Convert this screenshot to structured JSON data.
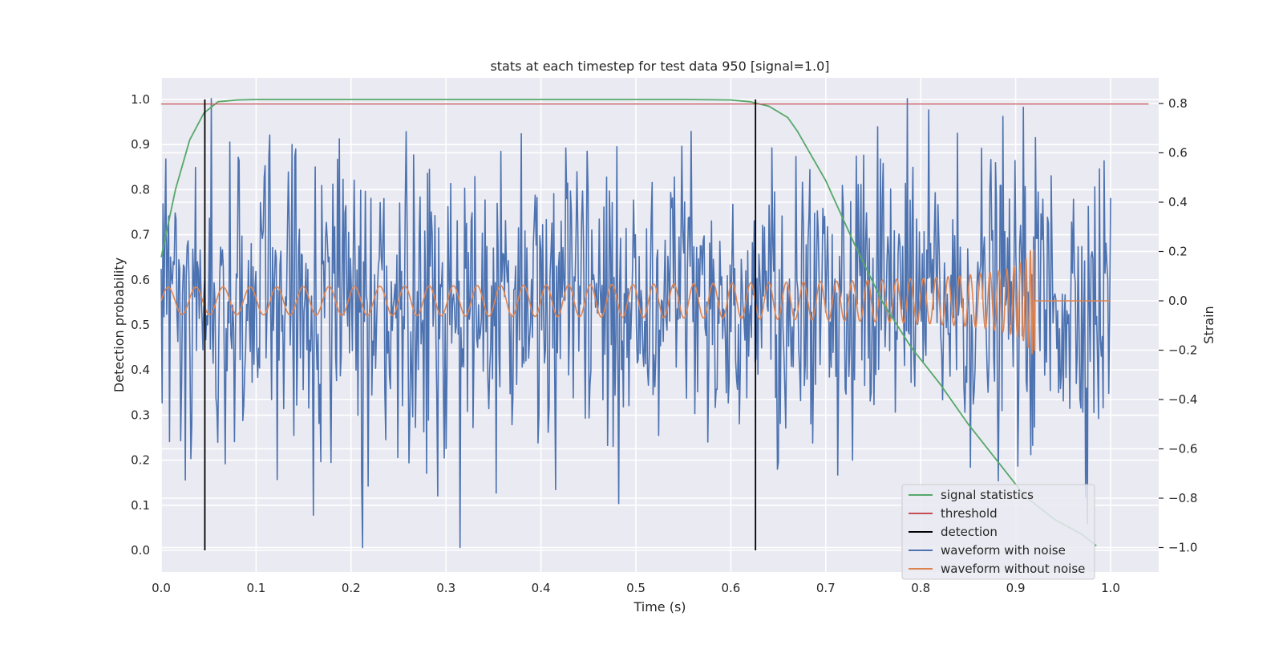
{
  "chart_data": {
    "type": "line",
    "title": "stats at each timestep for test data 950 [signal=1.0]",
    "xlabel": "Time (s)",
    "ylabel_left": "Detection probability",
    "ylabel_right": "Strain",
    "xlim": [
      0.0,
      1.05
    ],
    "ylim_left": [
      -0.05,
      1.05
    ],
    "ylim_right": [
      -1.09,
      0.9
    ],
    "x_ticks": [
      0.0,
      0.1,
      0.2,
      0.3,
      0.4,
      0.5,
      0.6,
      0.7,
      0.8,
      0.9,
      1.0
    ],
    "x_tick_labels": [
      "0.0",
      "0.1",
      "0.2",
      "0.3",
      "0.4",
      "0.5",
      "0.6",
      "0.7",
      "0.8",
      "0.9",
      "1.0"
    ],
    "y_left_ticks": [
      0.0,
      0.1,
      0.2,
      0.3,
      0.4,
      0.5,
      0.6,
      0.7,
      0.8,
      0.9,
      1.0
    ],
    "y_left_tick_labels": [
      "0.0",
      "0.1",
      "0.2",
      "0.3",
      "0.4",
      "0.5",
      "0.6",
      "0.7",
      "0.8",
      "0.9",
      "1.0"
    ],
    "y_right_ticks": [
      -1.0,
      -0.8,
      -0.6,
      -0.4,
      -0.2,
      0.0,
      0.2,
      0.4,
      0.6,
      0.8
    ],
    "y_right_tick_labels": [
      "−1.0",
      "−0.8",
      "−0.6",
      "−0.4",
      "−0.2",
      "0.0",
      "0.2",
      "0.4",
      "0.6",
      "0.8"
    ],
    "grid": true,
    "legend_position": "lower-right",
    "series": [
      {
        "name": "signal statistics",
        "axis": "left",
        "color": "#55a868",
        "x": [
          0.0,
          0.015,
          0.03,
          0.045,
          0.06,
          0.08,
          0.1,
          0.2,
          0.3,
          0.4,
          0.5,
          0.55,
          0.6,
          0.62,
          0.64,
          0.66,
          0.67,
          0.7,
          0.73,
          0.76,
          0.79,
          0.82,
          0.85,
          0.88,
          0.91,
          0.94,
          0.97,
          0.985
        ],
        "y": [
          0.65,
          0.8,
          0.91,
          0.97,
          0.995,
          0.999,
          1.0,
          1.0,
          1.0,
          1.0,
          1.0,
          1.0,
          0.999,
          0.995,
          0.985,
          0.96,
          0.93,
          0.82,
          0.68,
          0.55,
          0.45,
          0.37,
          0.28,
          0.2,
          0.12,
          0.07,
          0.035,
          0.01
        ]
      },
      {
        "name": "threshold",
        "axis": "left",
        "color": "#c44e52",
        "x": [
          0.0,
          1.04
        ],
        "y": [
          0.99,
          0.99
        ]
      },
      {
        "name": "detection",
        "axis": "left",
        "color": "#000000",
        "lines": [
          {
            "x": 0.046,
            "y": [
              0.0,
              1.0
            ]
          },
          {
            "x": 0.626,
            "y": [
              0.0,
              1.0
            ]
          }
        ]
      },
      {
        "name": "waveform with noise",
        "axis": "right",
        "color": "#4c72b0",
        "x_range": [
          0.0,
          1.0
        ],
        "points": 1024,
        "y_range": [
          -1.0,
          0.82
        ]
      },
      {
        "name": "waveform without noise",
        "axis": "right",
        "color": "#dd8452",
        "x_range": [
          0.0,
          1.0
        ],
        "chirp_end": 0.92,
        "y_range": [
          -0.25,
          0.21
        ]
      }
    ]
  }
}
